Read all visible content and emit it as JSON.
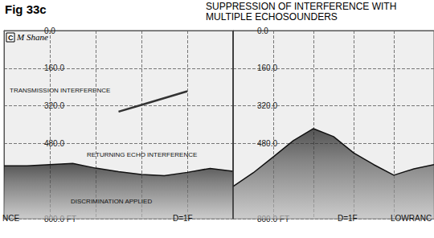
{
  "figure": {
    "label": "Fig 33c",
    "title": [
      "SUPPRESSION OF INTERFERENCE WITH",
      "MULTIPLE ECHOSOUNDERS"
    ],
    "copyright_mark": "C",
    "signature": "M Shane"
  },
  "chart_data": [
    {
      "type": "area",
      "x": [
        0,
        10,
        20,
        30,
        40,
        50,
        60,
        70,
        80,
        90,
        100
      ],
      "series": [
        {
          "color": "#111111",
          "values": [
            575,
            575,
            570,
            565,
            585,
            600,
            612,
            617,
            603,
            586,
            598
          ]
        },
        {
          "type": "line",
          "color": "#333333",
          "values": [
            null,
            null,
            null,
            null,
            null,
            345,
            316,
            287,
            258,
            null,
            null
          ]
        }
      ],
      "xlim": [
        0,
        100
      ],
      "xticks": [
        0,
        20,
        40,
        60,
        80,
        100
      ],
      "ylim": [
        0,
        800
      ],
      "yticks": [
        {
          "value": 0,
          "label": "0.0"
        },
        {
          "value": 160,
          "label": "160.0"
        },
        {
          "value": 320,
          "label": "320.0"
        },
        {
          "value": 480,
          "label": "480.0"
        },
        {
          "value": 800,
          "label": "800.0 FT"
        }
      ],
      "grid": true,
      "tick_labels": "y",
      "annotations": [
        "TRANSMISSION INTERFERENCE",
        "RETURNING ECHO INTERFERENCE",
        "DISCRIMINATION APPLIED"
      ],
      "footer": [
        "NCE",
        "D=1F"
      ]
    },
    {
      "type": "area",
      "x": [
        0,
        10,
        20,
        30,
        40,
        50,
        60,
        70,
        80,
        90,
        100
      ],
      "series": [
        {
          "color": "#111111",
          "values": [
            663,
            605,
            537,
            468,
            417,
            451,
            520,
            570,
            615,
            588,
            570
          ]
        }
      ],
      "xlim": [
        0,
        100
      ],
      "xticks": [
        0,
        20,
        40,
        60,
        80,
        100
      ],
      "ylim": [
        0,
        800
      ],
      "yticks": [
        {
          "value": 0,
          "label": "0.0"
        },
        {
          "value": 160,
          "label": "160.0"
        },
        {
          "value": 320,
          "label": "320.0"
        },
        {
          "value": 480,
          "label": "480.0"
        },
        {
          "value": 800,
          "label": "800.0 FT"
        }
      ],
      "grid": true,
      "tick_labels": "y",
      "annotations": [],
      "footer": [
        "D=1F",
        "LOWRANC"
      ]
    }
  ]
}
